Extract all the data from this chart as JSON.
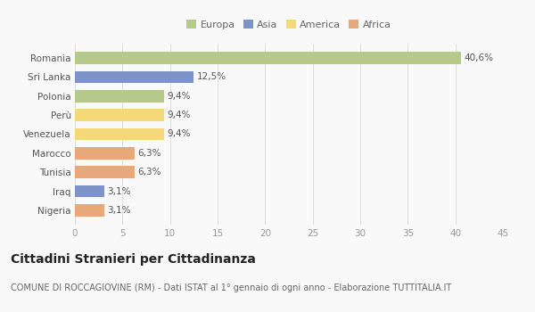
{
  "categories": [
    "Romania",
    "Sri Lanka",
    "Polonia",
    "Perù",
    "Venezuela",
    "Marocco",
    "Tunisia",
    "Iraq",
    "Nigeria"
  ],
  "values": [
    40.6,
    12.5,
    9.4,
    9.4,
    9.4,
    6.3,
    6.3,
    3.1,
    3.1
  ],
  "labels": [
    "40,6%",
    "12,5%",
    "9,4%",
    "9,4%",
    "9,4%",
    "6,3%",
    "6,3%",
    "3,1%",
    "3,1%"
  ],
  "colors": [
    "#b5c98a",
    "#7b93c7",
    "#b5c98a",
    "#f5d87a",
    "#f5d87a",
    "#e8a87a",
    "#e8a87a",
    "#7b93c7",
    "#e8a87a"
  ],
  "legend_labels": [
    "Europa",
    "Asia",
    "America",
    "Africa"
  ],
  "legend_colors": [
    "#b5c98a",
    "#7b93c7",
    "#f5d87a",
    "#e8a87a"
  ],
  "xlim": [
    0,
    45
  ],
  "xticks": [
    0,
    5,
    10,
    15,
    20,
    25,
    30,
    35,
    40,
    45
  ],
  "title": "Cittadini Stranieri per Cittadinanza",
  "subtitle": "COMUNE DI ROCCAGIOVINE (RM) - Dati ISTAT al 1° gennaio di ogni anno - Elaborazione TUTTITALIA.IT",
  "background_color": "#f9f9f9",
  "grid_color": "#dddddd",
  "bar_height": 0.65,
  "label_fontsize": 7.5,
  "title_fontsize": 10,
  "subtitle_fontsize": 7,
  "tick_fontsize": 7.5,
  "ytick_fontsize": 7.5,
  "legend_fontsize": 8
}
